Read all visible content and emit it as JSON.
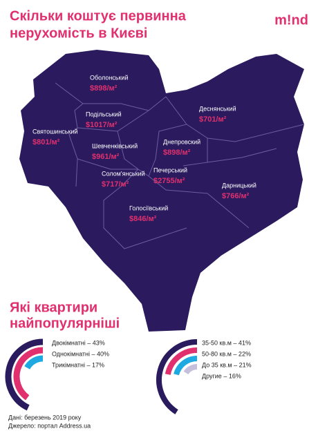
{
  "header": {
    "title": [
      "Скільки коштує первинна",
      "нерухомість в Києві"
    ],
    "logo": "m!nd"
  },
  "districts": [
    {
      "name": "Оболонський",
      "price": "$898/м²"
    },
    {
      "name": "Подільський",
      "price": "$1017/м²"
    },
    {
      "name": "Святошинський",
      "price": "$801/м²"
    },
    {
      "name": "Шевченківський",
      "price": "$961/м²"
    },
    {
      "name": "Солом'янський",
      "price": "$717/м²"
    },
    {
      "name": "Печерський",
      "price": "$2755/м²"
    },
    {
      "name": "Днепровский",
      "price": "$898/м²"
    },
    {
      "name": "Деснянський",
      "price": "$701/м²"
    },
    {
      "name": "Дарницький",
      "price": "$766/м²"
    },
    {
      "name": "Голосіївський",
      "price": "$846/м²"
    }
  ],
  "section_title": [
    "Які квартири",
    "найпопулярніші"
  ],
  "chart_data": [
    {
      "type": "radial-bar",
      "categories": [
        "Двокімнатні – 43%",
        "Однокімнатні – 40%",
        "Трикімнатні – 17%"
      ],
      "values": [
        43,
        40,
        17
      ],
      "colors": [
        "#2a1a5e",
        "#e0306e",
        "#1ea9e1"
      ]
    },
    {
      "type": "radial-bar",
      "categories": [
        "35-50 кв.м – 41%",
        "50-80 кв.м – 22%",
        "До 35 кв.м – 21%",
        "Другие – 16%"
      ],
      "values": [
        41,
        22,
        21,
        16
      ],
      "colors": [
        "#2a1a5e",
        "#e0306e",
        "#1ea9e1",
        "#c5bfdc"
      ]
    }
  ],
  "footer": {
    "date": "Дані: березень 2019 року",
    "source": "Джерело: портал Address.ua"
  }
}
